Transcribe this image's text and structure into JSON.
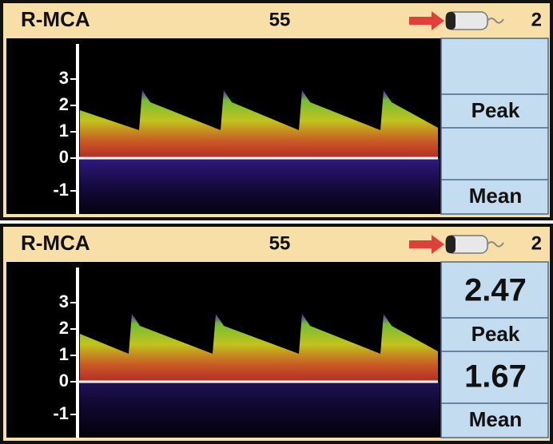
{
  "panels": [
    {
      "header": {
        "vessel": "R-MCA",
        "depth": "55",
        "channel": "2"
      },
      "scale_labels": [
        "3",
        "2",
        "1",
        "0",
        "-1"
      ],
      "readout": {
        "peak_label": "Peak",
        "mean_label": "Mean"
      }
    },
    {
      "header": {
        "vessel": "R-MCA",
        "depth": "55",
        "channel": "2"
      },
      "scale_labels": [
        "3",
        "2",
        "1",
        "0",
        "-1"
      ],
      "readout": {
        "peak_value": "2.47",
        "peak_label": "Peak",
        "mean_value": "1.67",
        "mean_label": "Mean"
      }
    }
  ]
}
